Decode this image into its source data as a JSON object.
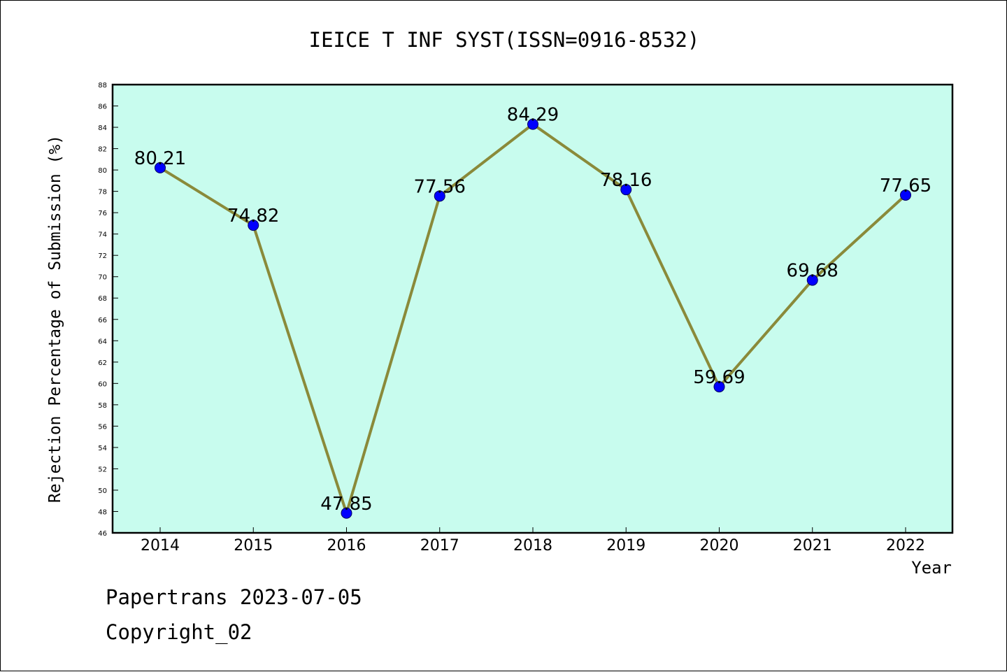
{
  "chart_data": {
    "type": "line",
    "title": "IEICE T INF SYST(ISSN=0916-8532)",
    "xlabel": "Year",
    "ylabel": "Rejection Percentage of Submission (%)",
    "categories": [
      "2014",
      "2015",
      "2016",
      "2017",
      "2018",
      "2019",
      "2020",
      "2021",
      "2022"
    ],
    "series": [
      {
        "values": [
          80.21,
          74.82,
          47.85,
          77.56,
          84.29,
          78.16,
          59.69,
          69.68,
          77.65
        ]
      }
    ],
    "data_labels": [
      "80.21",
      "74.82",
      "47.85",
      "77.56",
      "84.29",
      "78.16",
      "59.69",
      "69.68",
      "77.65"
    ],
    "ylim": [
      46,
      88
    ],
    "yticks": [
      "46",
      "48",
      "50",
      "52",
      "54",
      "56",
      "58",
      "60",
      "62",
      "64",
      "66",
      "68",
      "70",
      "72",
      "74",
      "76",
      "78",
      "80",
      "82",
      "84",
      "86",
      "88"
    ],
    "grid": false,
    "legend": "none",
    "colors": {
      "plot_background": "#c8fcee",
      "line": "#8a8a3a",
      "marker": "#0000ff",
      "axis": "#000000"
    }
  },
  "footer": {
    "source": "Papertrans 2023-07-05",
    "copyright": "Copyright_02"
  }
}
